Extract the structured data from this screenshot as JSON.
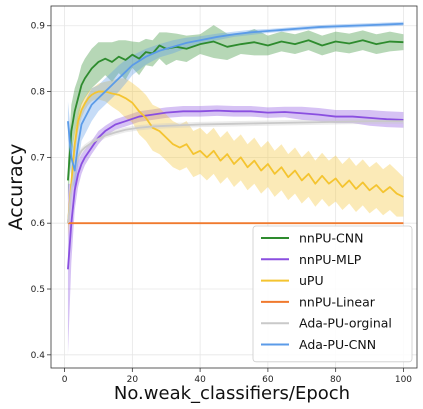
{
  "chart_data": {
    "type": "line",
    "xlabel": "No.weak_classifiers/Epoch",
    "ylabel": "Accuracy",
    "xlim": [
      -4,
      104
    ],
    "ylim": [
      0.38,
      0.93
    ],
    "xticks": [
      0,
      20,
      40,
      60,
      80,
      100
    ],
    "yticks": [
      0.4,
      0.5,
      0.6,
      0.7,
      0.8,
      0.9
    ],
    "xtick_labels": [
      "0",
      "20",
      "40",
      "60",
      "80",
      "100"
    ],
    "ytick_labels": [
      "0.4",
      "0.5",
      "0.6",
      "0.7",
      "0.8",
      "0.9"
    ],
    "grid": true,
    "legend_position": "lower-right",
    "series": [
      {
        "name": "nnPU-CNN",
        "color": "#2e8b2e",
        "x": [
          1,
          2,
          3,
          4,
          5,
          6,
          8,
          10,
          12,
          14,
          16,
          18,
          20,
          22,
          24,
          26,
          28,
          30,
          33,
          36,
          40,
          44,
          48,
          52,
          56,
          60,
          64,
          68,
          72,
          76,
          80,
          84,
          88,
          92,
          96,
          100
        ],
        "y": [
          0.665,
          0.74,
          0.77,
          0.79,
          0.81,
          0.82,
          0.835,
          0.845,
          0.85,
          0.845,
          0.853,
          0.848,
          0.856,
          0.85,
          0.86,
          0.858,
          0.87,
          0.865,
          0.868,
          0.865,
          0.872,
          0.876,
          0.868,
          0.872,
          0.875,
          0.87,
          0.876,
          0.872,
          0.878,
          0.87,
          0.876,
          0.873,
          0.878,
          0.872,
          0.876,
          0.875
        ],
        "band": [
          0.03,
          0.04,
          0.035,
          0.03,
          0.03,
          0.03,
          0.03,
          0.03,
          0.025,
          0.03,
          0.025,
          0.03,
          0.02,
          0.025,
          0.02,
          0.02,
          0.02,
          0.025,
          0.02,
          0.02,
          0.015,
          0.025,
          0.02,
          0.015,
          0.02,
          0.015,
          0.015,
          0.015,
          0.015,
          0.015,
          0.015,
          0.015,
          0.015,
          0.015,
          0.015,
          0.012
        ]
      },
      {
        "name": "nnPU-MLP",
        "color": "#8a4fe0",
        "x": [
          1,
          2,
          3,
          4,
          5,
          6,
          8,
          10,
          12,
          15,
          18,
          22,
          26,
          30,
          35,
          40,
          45,
          50,
          55,
          60,
          65,
          70,
          75,
          80,
          85,
          90,
          95,
          100
        ],
        "y": [
          0.53,
          0.6,
          0.65,
          0.675,
          0.69,
          0.7,
          0.715,
          0.73,
          0.74,
          0.75,
          0.755,
          0.762,
          0.765,
          0.768,
          0.77,
          0.77,
          0.771,
          0.77,
          0.77,
          0.768,
          0.769,
          0.767,
          0.765,
          0.762,
          0.762,
          0.76,
          0.758,
          0.757
        ],
        "band": [
          0.13,
          0.06,
          0.03,
          0.02,
          0.015,
          0.012,
          0.01,
          0.01,
          0.008,
          0.008,
          0.008,
          0.008,
          0.008,
          0.008,
          0.008,
          0.008,
          0.008,
          0.008,
          0.008,
          0.008,
          0.008,
          0.01,
          0.01,
          0.01,
          0.01,
          0.012,
          0.012,
          0.012
        ]
      },
      {
        "name": "uPU",
        "color": "#f4c430",
        "x": [
          1,
          2,
          3,
          4,
          5,
          6,
          7,
          8,
          9,
          10,
          12,
          14,
          16,
          18,
          20,
          22,
          24,
          26,
          28,
          30,
          32,
          34,
          36,
          38,
          40,
          42,
          44,
          46,
          48,
          50,
          52,
          54,
          56,
          58,
          60,
          62,
          64,
          66,
          68,
          70,
          72,
          74,
          76,
          78,
          80,
          82,
          84,
          86,
          88,
          90,
          92,
          94,
          96,
          98,
          100
        ],
        "y": [
          0.6,
          0.66,
          0.72,
          0.755,
          0.772,
          0.782,
          0.79,
          0.795,
          0.798,
          0.8,
          0.8,
          0.797,
          0.795,
          0.79,
          0.783,
          0.77,
          0.76,
          0.745,
          0.74,
          0.73,
          0.72,
          0.715,
          0.72,
          0.705,
          0.71,
          0.7,
          0.71,
          0.695,
          0.705,
          0.69,
          0.7,
          0.685,
          0.695,
          0.68,
          0.69,
          0.675,
          0.685,
          0.67,
          0.68,
          0.665,
          0.675,
          0.66,
          0.672,
          0.66,
          0.668,
          0.655,
          0.665,
          0.652,
          0.662,
          0.65,
          0.658,
          0.647,
          0.655,
          0.645,
          0.64
        ],
        "band": [
          0.02,
          0.02,
          0.02,
          0.015,
          0.012,
          0.01,
          0.01,
          0.01,
          0.01,
          0.012,
          0.015,
          0.02,
          0.025,
          0.03,
          0.03,
          0.035,
          0.035,
          0.035,
          0.035,
          0.035,
          0.035,
          0.035,
          0.035,
          0.035,
          0.035,
          0.035,
          0.035,
          0.035,
          0.035,
          0.035,
          0.035,
          0.035,
          0.035,
          0.035,
          0.035,
          0.035,
          0.035,
          0.035,
          0.035,
          0.035,
          0.035,
          0.035,
          0.035,
          0.035,
          0.035,
          0.035,
          0.035,
          0.035,
          0.035,
          0.035,
          0.035,
          0.035,
          0.035,
          0.035,
          0.03
        ]
      },
      {
        "name": "nnPU-Linear",
        "color": "#f07a2e",
        "x": [
          1,
          100
        ],
        "y": [
          0.6,
          0.6
        ],
        "band": [
          0,
          0
        ]
      },
      {
        "name": "Ada-PU-orginal",
        "color": "#c9c9c9",
        "x": [
          1,
          2,
          3,
          4,
          5,
          6,
          8,
          10,
          12,
          15,
          18,
          22,
          26,
          30,
          35,
          40,
          50,
          60,
          70,
          80,
          90,
          100
        ],
        "y": [
          0.6,
          0.65,
          0.68,
          0.7,
          0.71,
          0.715,
          0.722,
          0.728,
          0.733,
          0.738,
          0.742,
          0.745,
          0.747,
          0.748,
          0.749,
          0.75,
          0.751,
          0.752,
          0.753,
          0.754,
          0.755,
          0.755
        ],
        "band": [
          0.01,
          0.008,
          0.006,
          0.005,
          0.005,
          0.005,
          0.005,
          0.005,
          0.004,
          0.004,
          0.004,
          0.004,
          0.004,
          0.004,
          0.004,
          0.004,
          0.004,
          0.004,
          0.004,
          0.004,
          0.004,
          0.004
        ]
      },
      {
        "name": "Ada-PU-CNN",
        "color": "#5b9be8",
        "x": [
          1,
          2,
          3,
          4,
          5,
          6,
          7,
          8,
          10,
          12,
          14,
          16,
          18,
          20,
          24,
          28,
          32,
          36,
          40,
          45,
          50,
          55,
          60,
          65,
          70,
          75,
          80,
          85,
          90,
          95,
          100
        ],
        "y": [
          0.755,
          0.7,
          0.68,
          0.72,
          0.75,
          0.76,
          0.77,
          0.78,
          0.79,
          0.8,
          0.81,
          0.82,
          0.83,
          0.84,
          0.853,
          0.862,
          0.868,
          0.874,
          0.878,
          0.883,
          0.887,
          0.89,
          0.892,
          0.894,
          0.896,
          0.898,
          0.899,
          0.9,
          0.901,
          0.902,
          0.903
        ],
        "band": [
          0.03,
          0.03,
          0.03,
          0.03,
          0.025,
          0.025,
          0.025,
          0.025,
          0.02,
          0.02,
          0.02,
          0.02,
          0.018,
          0.015,
          0.012,
          0.01,
          0.01,
          0.008,
          0.006,
          0.005,
          0.004,
          0.004,
          0.003,
          0.003,
          0.003,
          0.003,
          0.003,
          0.003,
          0.003,
          0.003,
          0.003
        ]
      }
    ]
  }
}
